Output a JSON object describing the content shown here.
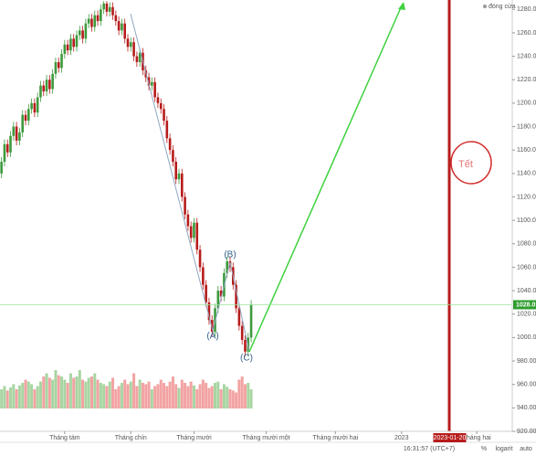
{
  "chart_data": {
    "type": "candlestick",
    "legend": "đóng cửa",
    "x": [
      0,
      1,
      2,
      3,
      4,
      5,
      6,
      7,
      8,
      9,
      10,
      11,
      12,
      13,
      14,
      15,
      16,
      17,
      18,
      19,
      20,
      21,
      22,
      23,
      24,
      25,
      26,
      27,
      28,
      29,
      30,
      31,
      32,
      33,
      34,
      35,
      36,
      37,
      38,
      39,
      40,
      41,
      42,
      43,
      44,
      45,
      46,
      47,
      48,
      49,
      50,
      51,
      52,
      53,
      54,
      55,
      56,
      57,
      58,
      59,
      60,
      61,
      62,
      63,
      64,
      65,
      66,
      67,
      68,
      69,
      70,
      71,
      72,
      73,
      74,
      75,
      76,
      77,
      78,
      79,
      80,
      81,
      82,
      83
    ],
    "open": [
      1140,
      1150,
      1165,
      1158,
      1172,
      1180,
      1168,
      1175,
      1190,
      1185,
      1195,
      1200,
      1192,
      1205,
      1215,
      1210,
      1220,
      1212,
      1225,
      1235,
      1230,
      1242,
      1250,
      1245,
      1255,
      1248,
      1258,
      1262,
      1255,
      1268,
      1272,
      1265,
      1275,
      1270,
      1280,
      1285,
      1278,
      1282,
      1275,
      1270,
      1262,
      1268,
      1255,
      1248,
      1252,
      1240,
      1235,
      1243,
      1228,
      1222,
      1215,
      1218,
      1205,
      1200,
      1195,
      1185,
      1170,
      1160,
      1150,
      1135,
      1140,
      1120,
      1105,
      1095,
      1085,
      1098,
      1075,
      1060,
      1045,
      1030,
      1015,
      1005,
      1025,
      1040,
      1035,
      1055,
      1065,
      1060,
      1045,
      1025,
      1010,
      998,
      988,
      1000
    ],
    "high": [
      1154,
      1169,
      1169,
      1176,
      1184,
      1184,
      1179,
      1194,
      1194,
      1199,
      1204,
      1204,
      1209,
      1219,
      1219,
      1224,
      1224,
      1229,
      1239,
      1239,
      1246,
      1254,
      1254,
      1259,
      1259,
      1262,
      1266,
      1266,
      1272,
      1276,
      1276,
      1279,
      1279,
      1284,
      1287,
      1287,
      1286,
      1286,
      1279,
      1274,
      1272,
      1272,
      1259,
      1256,
      1256,
      1244,
      1247,
      1247,
      1232,
      1226,
      1222,
      1222,
      1209,
      1204,
      1199,
      1189,
      1174,
      1164,
      1154,
      1144,
      1144,
      1124,
      1109,
      1099,
      1102,
      1102,
      1079,
      1064,
      1049,
      1034,
      1019,
      1029,
      1044,
      1044,
      1059,
      1069,
      1069,
      1064,
      1049,
      1029,
      1014,
      1002,
      1004,
      1032
    ],
    "low": [
      1136,
      1146,
      1154,
      1154,
      1168,
      1164,
      1164,
      1171,
      1181,
      1181,
      1191,
      1188,
      1188,
      1201,
      1206,
      1206,
      1208,
      1208,
      1221,
      1226,
      1226,
      1238,
      1241,
      1241,
      1244,
      1244,
      1254,
      1251,
      1251,
      1264,
      1261,
      1261,
      1266,
      1266,
      1276,
      1274,
      1274,
      1271,
      1266,
      1258,
      1258,
      1251,
      1244,
      1244,
      1236,
      1231,
      1231,
      1224,
      1218,
      1211,
      1211,
      1201,
      1196,
      1191,
      1181,
      1166,
      1156,
      1146,
      1131,
      1131,
      1116,
      1101,
      1091,
      1081,
      1081,
      1071,
      1056,
      1041,
      1026,
      1011,
      1001,
      1001,
      1021,
      1031,
      1031,
      1051,
      1056,
      1041,
      1021,
      1006,
      994,
      984,
      984,
      996
    ],
    "close": [
      1150,
      1165,
      1158,
      1172,
      1180,
      1168,
      1175,
      1190,
      1185,
      1195,
      1200,
      1192,
      1205,
      1215,
      1210,
      1220,
      1212,
      1225,
      1235,
      1230,
      1242,
      1250,
      1245,
      1255,
      1248,
      1258,
      1262,
      1255,
      1268,
      1272,
      1265,
      1275,
      1270,
      1280,
      1285,
      1278,
      1282,
      1275,
      1270,
      1262,
      1268,
      1255,
      1248,
      1252,
      1240,
      1235,
      1243,
      1228,
      1222,
      1215,
      1218,
      1205,
      1200,
      1195,
      1185,
      1170,
      1160,
      1150,
      1135,
      1140,
      1120,
      1105,
      1095,
      1085,
      1098,
      1075,
      1060,
      1045,
      1030,
      1015,
      1005,
      1025,
      1040,
      1035,
      1055,
      1065,
      1060,
      1045,
      1025,
      1010,
      998,
      988,
      1000,
      1028.01
    ],
    "volume": [
      30,
      35,
      28,
      33,
      38,
      30,
      36,
      40,
      45,
      42,
      38,
      30,
      35,
      42,
      50,
      55,
      48,
      45,
      60,
      52,
      50,
      45,
      40,
      55,
      48,
      50,
      60,
      45,
      42,
      48,
      50,
      55,
      45,
      40,
      38,
      35,
      42,
      48,
      30,
      35,
      40,
      45,
      38,
      42,
      55,
      35,
      45,
      40,
      38,
      42,
      30,
      35,
      38,
      45,
      40,
      35,
      42,
      50,
      38,
      32,
      45,
      40,
      35,
      42,
      36,
      30,
      38,
      45,
      40,
      32,
      35,
      40,
      42,
      30,
      38,
      34,
      30,
      28,
      25,
      45,
      50,
      38,
      40,
      30
    ],
    "up_color": "#3d9a3d",
    "down_color": "#b71c1c",
    "up_volume_color": "#a8d5a2",
    "down_volume_color": "#f2a3a3",
    "xlim": [
      -0.5,
      169.5
    ],
    "xticks": [
      {
        "value": 21,
        "label": "Tháng tám"
      },
      {
        "value": 43,
        "label": "Tháng chín"
      },
      {
        "value": 64,
        "label": "Tháng mười"
      },
      {
        "value": 88,
        "label": "Tháng mười một"
      },
      {
        "value": 111,
        "label": "Tháng mười hai"
      },
      {
        "value": 133,
        "label": "2023"
      },
      {
        "value": 158,
        "label": "Tháng hai"
      }
    ],
    "marker": {
      "value": 149,
      "label": "2023-01-20"
    },
    "ylim": [
      920,
      1288
    ],
    "yticks": [
      {
        "value": 920,
        "label": "920.00"
      },
      {
        "value": 940,
        "label": "940.00"
      },
      {
        "value": 960,
        "label": "960.00"
      },
      {
        "value": 980,
        "label": "980.00"
      },
      {
        "value": 1000,
        "label": "1000.00"
      },
      {
        "value": 1020,
        "label": "1020.00"
      },
      {
        "value": 1040,
        "label": "1040.00"
      },
      {
        "value": 1060,
        "label": "1060.00"
      },
      {
        "value": 1080,
        "label": "1080.00"
      },
      {
        "value": 1100,
        "label": "1100.00"
      },
      {
        "value": 1120,
        "label": "1120.00"
      },
      {
        "value": 1140,
        "label": "1140.00"
      },
      {
        "value": 1160,
        "label": "1160.00"
      },
      {
        "value": 1180,
        "label": "1180.00"
      },
      {
        "value": 1200,
        "label": "1200.00"
      },
      {
        "value": 1220,
        "label": "1220.00"
      },
      {
        "value": 1240,
        "label": "1240.00"
      },
      {
        "value": 1260,
        "label": "1260.00"
      },
      {
        "value": 1280,
        "label": "1280.00"
      }
    ],
    "annotations": [
      "(A)",
      "(B)",
      "(C)",
      "Tết"
    ],
    "timestamp": "16:31:57 (UTC+7)",
    "scale_options": [
      "%",
      "logarit",
      "auto"
    ]
  }
}
